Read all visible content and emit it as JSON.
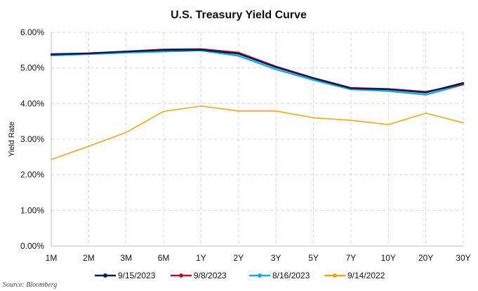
{
  "chart_data": {
    "type": "line",
    "title": "U.S. Treasury Yield Curve",
    "xlabel": "",
    "ylabel": "Yield Rate",
    "categories": [
      "1M",
      "2M",
      "3M",
      "6M",
      "1Y",
      "2Y",
      "3Y",
      "5Y",
      "7Y",
      "10Y",
      "20Y",
      "30Y"
    ],
    "ylim": [
      0,
      6
    ],
    "yticks": [
      0,
      1,
      2,
      3,
      4,
      5,
      6
    ],
    "ytick_labels": [
      "0.00%",
      "1.00%",
      "2.00%",
      "3.00%",
      "4.00%",
      "5.00%",
      "6.00%"
    ],
    "grid": true,
    "legend_position": "bottom",
    "series": [
      {
        "name": "9/15/2023",
        "color": "#0d1b4c",
        "values": [
          5.38,
          5.41,
          5.46,
          5.5,
          5.51,
          5.4,
          5.02,
          4.71,
          4.43,
          4.4,
          4.31,
          4.58
        ]
      },
      {
        "name": "9/8/2023",
        "color": "#a6192e",
        "values": [
          5.39,
          5.41,
          5.46,
          5.52,
          5.53,
          5.43,
          5.04,
          4.72,
          4.44,
          4.41,
          4.33,
          4.54
        ]
      },
      {
        "name": "8/16/2023",
        "color": "#1aa7df",
        "values": [
          5.35,
          5.39,
          5.43,
          5.46,
          5.49,
          5.34,
          4.96,
          4.66,
          4.4,
          4.35,
          4.25,
          4.53
        ]
      },
      {
        "name": "9/14/2022",
        "color": "#f5a31a",
        "values": [
          2.43,
          2.8,
          3.19,
          3.78,
          3.93,
          3.79,
          3.79,
          3.6,
          3.53,
          3.41,
          3.73,
          3.46
        ]
      }
    ]
  },
  "source": "Source: Bloomberg"
}
